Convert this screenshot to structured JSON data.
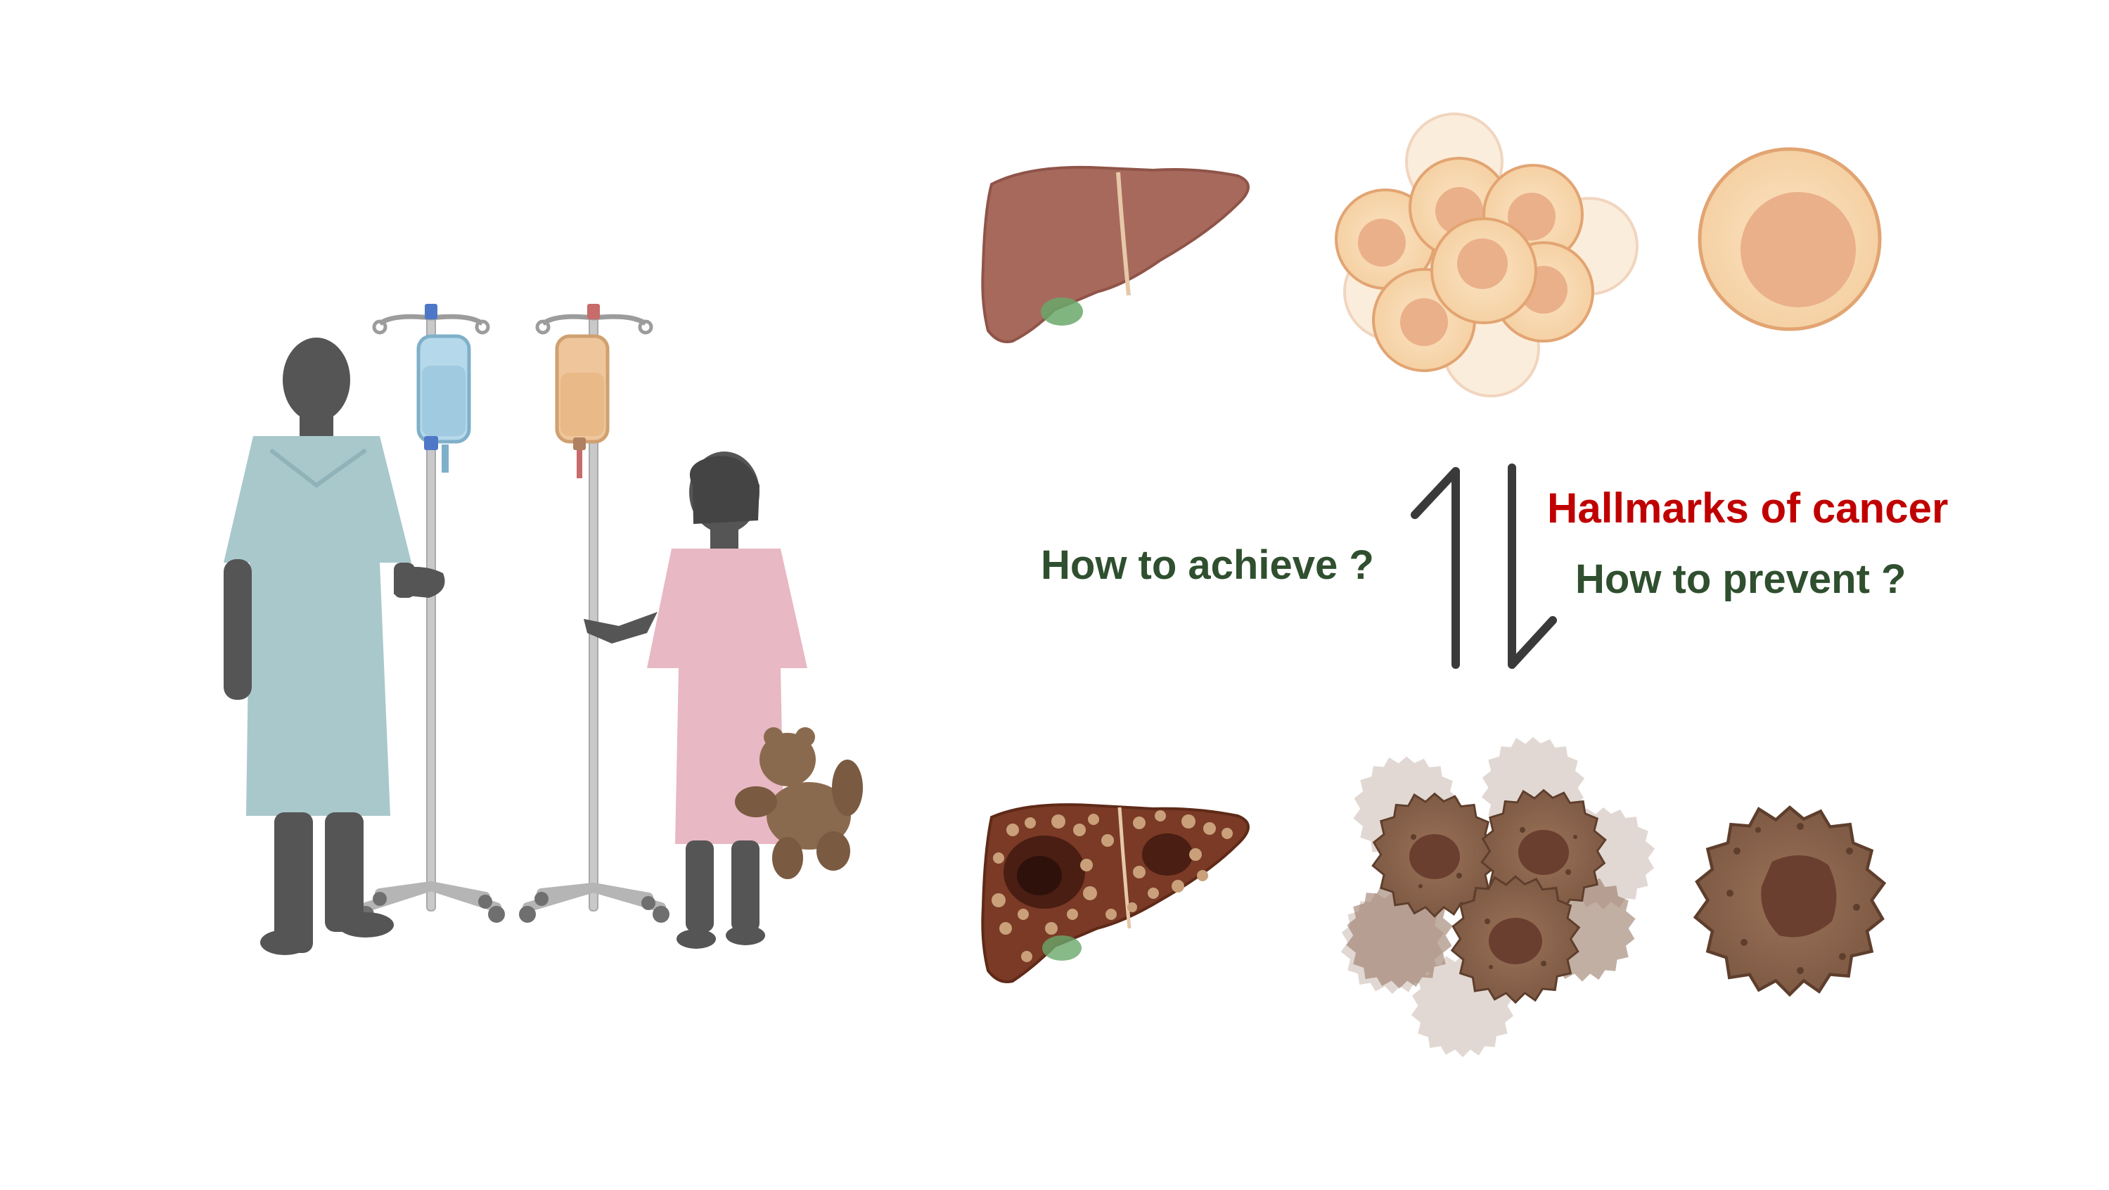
{
  "labels": {
    "achieve": "How to achieve ?",
    "hallmarks": "Hallmarks of cancer",
    "prevent": "How to prevent ?"
  },
  "colors": {
    "label_green": "#2f4f2f",
    "label_red": "#c00000",
    "healthy_liver": "#a8695d",
    "gallbladder": "#6aa86a",
    "healthy_cell_fill": "#f8d9b0",
    "healthy_cell_nucleus": "#eab08a",
    "healthy_cell_stroke": "#e2a472",
    "cancer_cell_fill": "#8c6650",
    "cancer_cell_nucleus": "#6a3f30",
    "cancer_liver": "#7a3a26",
    "adult_gown": "#a9c8cc",
    "child_gown": "#e8b8c4",
    "silhouette": "#555555",
    "arrow": "#3a3a3a",
    "iv_saline": "#b5d8ea",
    "iv_blood": "#efc69c",
    "teddy": "#8a6a4e"
  },
  "icons": [
    "adult-patient-icon",
    "child-patient-icon",
    "iv-pole-icon",
    "teddy-bear-icon",
    "healthy-liver-icon",
    "healthy-cell-cluster-icon",
    "healthy-cell-icon",
    "reversible-arrows-icon",
    "cancerous-liver-icon",
    "cancer-cell-cluster-icon",
    "cancer-cell-icon"
  ]
}
